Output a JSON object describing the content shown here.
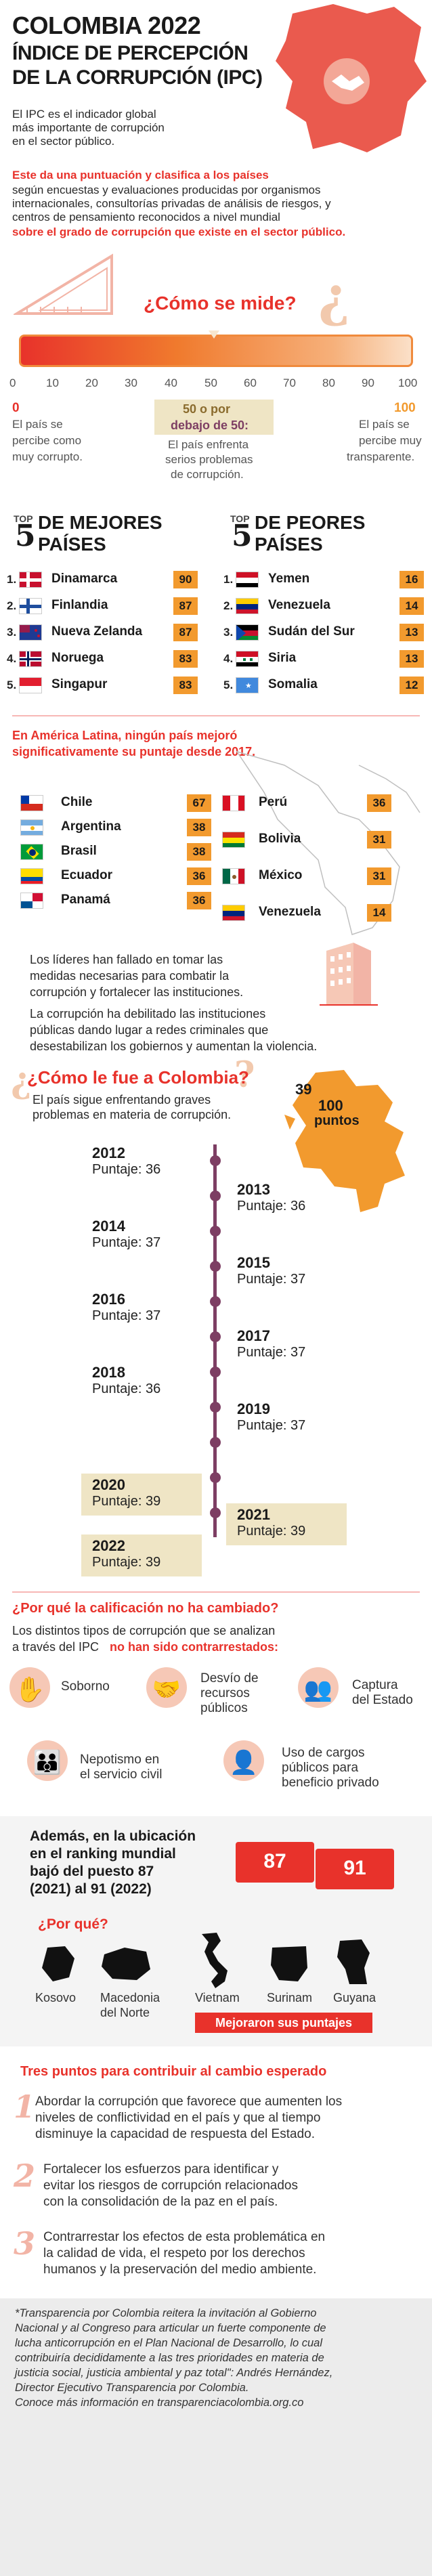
{
  "header": {
    "title": "COLOMBIA 2022",
    "subtitle_line1": "ÍNDICE DE PERCEPCIÓN",
    "subtitle_line2": "DE LA CORRUPCIÓN (IPC)",
    "intro_line1": "El IPC es el indicador global",
    "intro_line2": "más importante de corrupción",
    "intro_line3": "en el sector público."
  },
  "explain": {
    "line1": "Este da una puntuación y clasifica a los países",
    "line2": "según encuestas y evaluaciones producidas por organismos",
    "line3": "internacionales, consultorías privadas de análisis de riesgos, y",
    "line4": "centros de pensamiento reconocidos a nivel mundial",
    "line5": "sobre el grado de corrupción que existe en el sector público."
  },
  "scale": {
    "heading": "¿Cómo se mide?",
    "ticks": [
      "0",
      "10",
      "20",
      "30",
      "40",
      "50",
      "60",
      "70",
      "80",
      "90",
      "100"
    ],
    "left_value": "0",
    "left_text": [
      "El país se",
      "percibe como",
      "muy corrupto."
    ],
    "mid_value": "50 o por",
    "mid_value2": "debajo de 50:",
    "mid_text": [
      "El país enfrenta",
      "serios problemas",
      "de corrupción."
    ],
    "right_value": "100",
    "right_text": [
      "El país se",
      "percibe muy",
      "transparente."
    ]
  },
  "top_best": {
    "label_top": "TOP",
    "label_num": "5",
    "label_a": "DE MEJORES",
    "label_b": "PAÍSES",
    "rows": [
      {
        "rank": "1.",
        "name": "Dinamarca",
        "score": "90"
      },
      {
        "rank": "2.",
        "name": "Finlandia",
        "score": "87"
      },
      {
        "rank": "3.",
        "name": "Nueva Zelanda",
        "score": "87"
      },
      {
        "rank": "4.",
        "name": "Noruega",
        "score": "83"
      },
      {
        "rank": "5.",
        "name": "Singapur",
        "score": "83"
      }
    ]
  },
  "top_worst": {
    "label_top": "TOP",
    "label_num": "5",
    "label_a": "DE PEORES",
    "label_b": "PAÍSES",
    "rows": [
      {
        "rank": "1.",
        "name": "Yemen",
        "score": "16"
      },
      {
        "rank": "2.",
        "name": "Venezuela",
        "score": "14"
      },
      {
        "rank": "3.",
        "name": "Sudán del Sur",
        "score": "13"
      },
      {
        "rank": "4.",
        "name": "Siria",
        "score": "13"
      },
      {
        "rank": "5.",
        "name": "Somalia",
        "score": "12"
      }
    ]
  },
  "latam": {
    "intro_line1": "En América Latina, ningún país mejoró",
    "intro_line2": "significativamente su puntaje desde 2017.",
    "left": [
      {
        "name": "Chile",
        "score": "67"
      },
      {
        "name": "Argentina",
        "score": "38"
      },
      {
        "name": "Brasil",
        "score": "38"
      },
      {
        "name": "Ecuador",
        "score": "36"
      },
      {
        "name": "Panamá",
        "score": "36"
      }
    ],
    "right": [
      {
        "name": "Perú",
        "score": "36"
      },
      {
        "name": "Bolivia",
        "score": "31"
      },
      {
        "name": "México",
        "score": "31"
      },
      {
        "name": "Venezuela",
        "score": "14"
      }
    ],
    "para1": [
      "Los líderes han fallado en tomar las",
      "medidas necesarias para combatir la",
      "corrupción y fortalecer las instituciones."
    ],
    "para2": [
      "La corrupción ha debilitado las instituciones",
      "públicas dando lugar a redes criminales que",
      "desestabilizan los gobiernos y aumentan la violencia."
    ]
  },
  "colombia": {
    "heading": "¿Cómo le fue a Colombia?",
    "intro_line1": "El país sigue enfrentando graves",
    "intro_line2": "problemas en materia de corrupción.",
    "map_rank": "39",
    "map_score": "100",
    "map_unit": "puntos",
    "years": [
      {
        "year": "2012",
        "score": "Puntaje: 36"
      },
      {
        "year": "2013",
        "score": "Puntaje: 36"
      },
      {
        "year": "2014",
        "score": "Puntaje: 37"
      },
      {
        "year": "2015",
        "score": "Puntaje: 37"
      },
      {
        "year": "2016",
        "score": "Puntaje: 37"
      },
      {
        "year": "2017",
        "score": "Puntaje: 37"
      },
      {
        "year": "2018",
        "score": "Puntaje: 36"
      },
      {
        "year": "2019",
        "score": "Puntaje: 37"
      },
      {
        "year": "2020",
        "score": "Puntaje: 39"
      },
      {
        "year": "2021",
        "score": "Puntaje: 39"
      },
      {
        "year": "2022",
        "score": "Puntaje: 39"
      }
    ]
  },
  "why": {
    "heading": "¿Por qué la calificación no ha cambiado?",
    "intro_line1": "Los distintos tipos de corrupción que se analizan",
    "intro_line2a": "a través del IPC ",
    "intro_line2b": "no han sido contrarrestados:",
    "items": [
      {
        "icon": "bribe-hands-icon",
        "lines": [
          "Soborno"
        ]
      },
      {
        "icon": "handshake-icon",
        "lines": [
          "Desvío de",
          "recursos",
          "públicos"
        ]
      },
      {
        "icon": "people-icon",
        "lines": [
          "Captura",
          "del Estado"
        ]
      },
      {
        "icon": "family-icon",
        "lines": [
          "Nepotismo en",
          "el servicio civil"
        ]
      },
      {
        "icon": "person-podium-icon",
        "lines": [
          "Uso de cargos",
          "públicos para",
          "beneficio privado"
        ]
      }
    ]
  },
  "ranking": {
    "line1": "Además, en la ubicación",
    "line2": "en el ranking mundial",
    "line3": "bajó del puesto 87",
    "line4": "(2021) al 91 (2022)",
    "from": "87",
    "to": "91",
    "why_heading": "¿Por qué?",
    "countries": [
      {
        "name": "Kosovo",
        "name2": ""
      },
      {
        "name": "Macedonia",
        "name2": "del Norte"
      },
      {
        "name": "Vietnam",
        "name2": ""
      },
      {
        "name": "Surinam",
        "name2": ""
      },
      {
        "name": "Guyana",
        "name2": ""
      }
    ],
    "improved": "Mejoraron sus puntajes"
  },
  "points": {
    "heading": "Tres puntos para contribuir al cambio esperado",
    "items": [
      {
        "num": "1",
        "lines": [
          "Abordar la corrupción que favorece que aumenten los",
          "niveles de conflictividad en el país y que al tiempo",
          "disminuye la capacidad de respuesta del Estado."
        ]
      },
      {
        "num": "2",
        "lines": [
          "Fortalecer los esfuerzos para identificar y",
          "evitar los riesgos de corrupción relacionados",
          "con la consolidación de la paz en el país."
        ]
      },
      {
        "num": "3",
        "lines": [
          "Contrarrestar los efectos de esta problemática en",
          "la calidad de vida, el respeto por los derechos",
          "humanos y la preservación del medio ambiente."
        ]
      }
    ]
  },
  "quote": {
    "lines": [
      "*Transparencia por Colombia reitera la invitación al Gobierno",
      "Nacional y al Congreso para articular un fuerte componente de",
      "lucha anticorrupción en el Plan Nacional de Desarrollo, lo cual",
      "contribuiría decididamente a las tres prioridades en materia de",
      "justicia social, justicia ambiental y paz total\": Andrés Hernández,",
      "Director Ejecutivo Transparencia por Colombia.",
      "Conoce más información en transparenciacolombia.org.co"
    ]
  },
  "colors": {
    "accent_red": "#e8322b",
    "badge_orange": "#f29a2e",
    "timeline_purple": "#7d3e63",
    "highlight_beige": "#efe5c5",
    "soft_pink": "#f6c8b6"
  }
}
